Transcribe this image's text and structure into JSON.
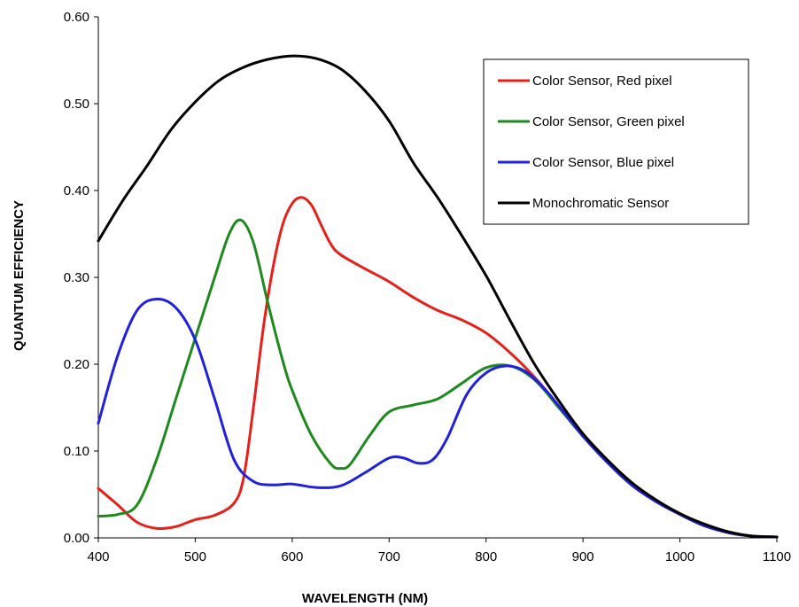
{
  "chart_data": {
    "type": "line",
    "xlabel": "WAVELENGTH (NM)",
    "ylabel": "QUANTUM EFFICIENCY",
    "xlim": [
      400,
      1100
    ],
    "ylim": [
      0,
      0.6
    ],
    "x_ticks": [
      "400",
      "500",
      "600",
      "700",
      "800",
      "900",
      "1000",
      "1100"
    ],
    "y_ticks": [
      "0.00",
      "0.10",
      "0.20",
      "0.30",
      "0.40",
      "0.50",
      "0.60"
    ],
    "grid": false,
    "legend_position": "top-right",
    "series": [
      {
        "name": "Color Sensor, Red pixel",
        "color": "#e8201a",
        "points": [
          [
            400,
            0.057
          ],
          [
            420,
            0.038
          ],
          [
            440,
            0.018
          ],
          [
            460,
            0.011
          ],
          [
            480,
            0.013
          ],
          [
            500,
            0.021
          ],
          [
            520,
            0.026
          ],
          [
            540,
            0.04
          ],
          [
            550,
            0.07
          ],
          [
            560,
            0.15
          ],
          [
            570,
            0.24
          ],
          [
            580,
            0.31
          ],
          [
            590,
            0.36
          ],
          [
            600,
            0.385
          ],
          [
            610,
            0.392
          ],
          [
            620,
            0.383
          ],
          [
            630,
            0.36
          ],
          [
            640,
            0.338
          ],
          [
            650,
            0.326
          ],
          [
            675,
            0.31
          ],
          [
            700,
            0.295
          ],
          [
            725,
            0.277
          ],
          [
            750,
            0.262
          ],
          [
            775,
            0.251
          ],
          [
            800,
            0.236
          ],
          [
            825,
            0.213
          ],
          [
            850,
            0.185
          ],
          [
            875,
            0.152
          ],
          [
            900,
            0.118
          ],
          [
            925,
            0.088
          ],
          [
            950,
            0.062
          ],
          [
            975,
            0.043
          ],
          [
            1000,
            0.028
          ],
          [
            1025,
            0.015
          ],
          [
            1050,
            0.006
          ],
          [
            1075,
            0.002
          ],
          [
            1100,
            0.001
          ]
        ]
      },
      {
        "name": "Color Sensor, Green pixel",
        "color": "#1e8a1e",
        "points": [
          [
            400,
            0.025
          ],
          [
            420,
            0.027
          ],
          [
            440,
            0.038
          ],
          [
            460,
            0.09
          ],
          [
            480,
            0.16
          ],
          [
            500,
            0.23
          ],
          [
            520,
            0.3
          ],
          [
            535,
            0.35
          ],
          [
            547,
            0.366
          ],
          [
            560,
            0.34
          ],
          [
            575,
            0.27
          ],
          [
            590,
            0.205
          ],
          [
            600,
            0.17
          ],
          [
            620,
            0.118
          ],
          [
            640,
            0.085
          ],
          [
            650,
            0.08
          ],
          [
            660,
            0.085
          ],
          [
            680,
            0.118
          ],
          [
            700,
            0.145
          ],
          [
            725,
            0.153
          ],
          [
            750,
            0.16
          ],
          [
            775,
            0.178
          ],
          [
            800,
            0.196
          ],
          [
            825,
            0.198
          ],
          [
            850,
            0.182
          ],
          [
            875,
            0.15
          ],
          [
            900,
            0.117
          ],
          [
            925,
            0.087
          ],
          [
            950,
            0.061
          ],
          [
            975,
            0.042
          ],
          [
            1000,
            0.027
          ],
          [
            1025,
            0.014
          ],
          [
            1050,
            0.006
          ],
          [
            1075,
            0.002
          ],
          [
            1100,
            0.001
          ]
        ]
      },
      {
        "name": "Color Sensor, Blue pixel",
        "color": "#2020e0",
        "points": [
          [
            400,
            0.132
          ],
          [
            420,
            0.21
          ],
          [
            440,
            0.262
          ],
          [
            460,
            0.275
          ],
          [
            480,
            0.265
          ],
          [
            500,
            0.228
          ],
          [
            520,
            0.16
          ],
          [
            540,
            0.09
          ],
          [
            560,
            0.065
          ],
          [
            580,
            0.061
          ],
          [
            600,
            0.062
          ],
          [
            625,
            0.058
          ],
          [
            650,
            0.06
          ],
          [
            675,
            0.075
          ],
          [
            700,
            0.092
          ],
          [
            715,
            0.092
          ],
          [
            730,
            0.086
          ],
          [
            745,
            0.09
          ],
          [
            760,
            0.115
          ],
          [
            780,
            0.165
          ],
          [
            800,
            0.19
          ],
          [
            820,
            0.198
          ],
          [
            840,
            0.192
          ],
          [
            860,
            0.172
          ],
          [
            880,
            0.145
          ],
          [
            900,
            0.117
          ],
          [
            925,
            0.087
          ],
          [
            950,
            0.061
          ],
          [
            975,
            0.042
          ],
          [
            1000,
            0.027
          ],
          [
            1025,
            0.014
          ],
          [
            1050,
            0.006
          ],
          [
            1075,
            0.002
          ],
          [
            1100,
            0.001
          ]
        ]
      },
      {
        "name": "Monochromatic Sensor",
        "color": "#000000",
        "points": [
          [
            400,
            0.342
          ],
          [
            425,
            0.388
          ],
          [
            450,
            0.428
          ],
          [
            475,
            0.47
          ],
          [
            500,
            0.502
          ],
          [
            525,
            0.527
          ],
          [
            550,
            0.542
          ],
          [
            575,
            0.551
          ],
          [
            600,
            0.555
          ],
          [
            625,
            0.552
          ],
          [
            650,
            0.54
          ],
          [
            675,
            0.515
          ],
          [
            700,
            0.48
          ],
          [
            725,
            0.432
          ],
          [
            750,
            0.392
          ],
          [
            775,
            0.348
          ],
          [
            800,
            0.302
          ],
          [
            825,
            0.25
          ],
          [
            850,
            0.2
          ],
          [
            875,
            0.158
          ],
          [
            900,
            0.12
          ],
          [
            925,
            0.09
          ],
          [
            950,
            0.064
          ],
          [
            975,
            0.044
          ],
          [
            1000,
            0.028
          ],
          [
            1025,
            0.016
          ],
          [
            1050,
            0.007
          ],
          [
            1075,
            0.002
          ],
          [
            1100,
            0.001
          ]
        ]
      }
    ]
  }
}
